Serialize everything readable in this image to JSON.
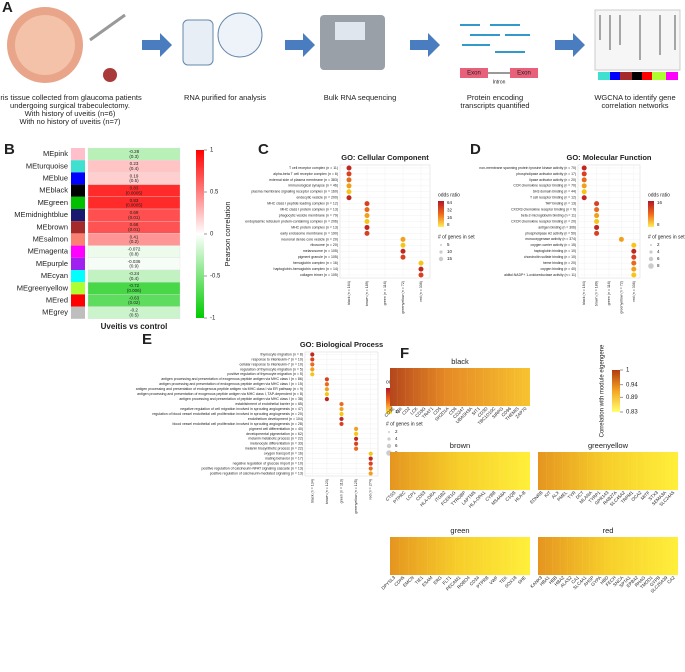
{
  "panel_a": {
    "letter": "A",
    "steps": [
      "Iris tissue collected from glaucoma patients",
      "undergoing surgical trabeculectomy.",
      "With history of uveitis (n=6)",
      "With no history of uveitis (n=7)",
      "RNA purified for analysis",
      "Bulk RNA sequencing",
      "Protein encoding",
      "transcripts quantified",
      "WGCNA to identify gene",
      "correlation networks"
    ],
    "exon": "Exon",
    "intron": "Intron"
  },
  "panel_b": {
    "letter": "B",
    "type": "heatmap",
    "rows": [
      {
        "module": "MEpink",
        "color": "#ffc0cb",
        "value": -0.28,
        "p": "(0.3)"
      },
      {
        "module": "MEturquoise",
        "color": "#40e0d0",
        "value": 0.23,
        "p": "(0.4)"
      },
      {
        "module": "MEblue",
        "color": "#0000ff",
        "value": 0.19,
        "p": "(0.5)"
      },
      {
        "module": "MEblack",
        "color": "#000000",
        "value": 0.83,
        "p": "(0.0005)"
      },
      {
        "module": "MEgreen",
        "color": "#00c000",
        "value": 0.83,
        "p": "(0.0005)"
      },
      {
        "module": "MEmidnightblue",
        "color": "#191970",
        "value": 0.69,
        "p": "(0.01)"
      },
      {
        "module": "MEbrown",
        "color": "#a52a2a",
        "value": 0.68,
        "p": "(0.01)"
      },
      {
        "module": "MEsalmon",
        "color": "#fa8072",
        "value": 0.41,
        "p": "(0.2)"
      },
      {
        "module": "MEmagenta",
        "color": "#ff00ff",
        "value": -0.072,
        "p": "(0.8)"
      },
      {
        "module": "MEpurple",
        "color": "#a020f0",
        "value": -0.036,
        "p": "(0.9)"
      },
      {
        "module": "MEcyan",
        "color": "#00ffff",
        "value": -0.24,
        "p": "(0.4)"
      },
      {
        "module": "MEgreenyellow",
        "color": "#adff2f",
        "value": -0.72,
        "p": "(0.006)"
      },
      {
        "module": "MEred",
        "color": "#ff0000",
        "value": -0.63,
        "p": "(0.02)"
      },
      {
        "module": "MEgrey",
        "color": "#bebebe",
        "value": -0.2,
        "p": "(0.5)"
      }
    ],
    "xlabel": "Uveitis vs control",
    "legend_title": "Pearson correlation",
    "clim": [
      -1,
      1
    ],
    "cticks": [
      1,
      0.5,
      0,
      -0.5,
      -1
    ]
  },
  "panel_c": {
    "letter": "C",
    "title": "GO: Cellular Component",
    "legend_color": "odds ratio",
    "legend_color_ticks": [
      64,
      32,
      16,
      8
    ],
    "legend_size": "# of genes in set",
    "legend_size_ticks": [
      5,
      10,
      15
    ],
    "groups": [
      {
        "module": "black (n = 164)",
        "terms": [
          "T cell receptor complex (n = 11)",
          "alpha-beta T cell receptor complex (n = 6)",
          "external side of plasma membrane (n = 383)",
          "immunological synapse (n = 46)",
          "plasma membrane signaling receptor complex (n = 160)",
          "endocytic vesicle (n = 200)"
        ]
      },
      {
        "module": "brown (n = 189)",
        "terms": [
          "MHC class I peptide loading complex (n = 12)",
          "MHC class I protein complex (n = 13)",
          "phagocytic vesicle membrane (n = 79)",
          "endoplasmic reticulum protein-containing complex (n = 206)",
          "MHC protein complex (n = 13)",
          "early endosome membrane (n = 190)"
        ]
      },
      {
        "module": "green (n = 116)",
        "terms": []
      },
      {
        "module": "greenyellow (n = 72)",
        "terms": [
          "neuronal dense core vesicle (n = 20)",
          "ribosome (n = 20)",
          "melanosome (n = 105)",
          "pigment granule (n = 105)"
        ]
      },
      {
        "module": "red (n = 336)",
        "terms": [
          "hemoglobin complex (n = 16)",
          "haptoglobin-hemoglobin complex (n = 14)",
          "collagen trimer (n = 105)"
        ]
      }
    ]
  },
  "panel_d": {
    "letter": "D",
    "title": "GO: Molecular Function",
    "legend_color": "odds ratio",
    "legend_color_ticks": [
      16,
      8
    ],
    "legend_size": "# of genes in set",
    "legend_size_ticks": [
      2,
      4,
      6,
      8
    ],
    "groups": [
      {
        "module": "black (n = 164)",
        "terms": [
          "non-membrane spanning protein tyrosine kinase activity (n = 70)",
          "phospholipase activator activity (n = 17)",
          "lipase activator activity (n = 20)",
          "CCR chemokine receptor binding (n = 70)",
          "SH3 domain binding (n = 44)",
          "T cell receptor binding (n = 12)"
        ]
      },
      {
        "module": "brown (n = 189)",
        "terms": [
          "TAP binding (n = 13)",
          "CXCR3 chemokine receptor binding (n = 9)",
          "beta-2-microglobulin binding (n = 11)",
          "CXCR chemokine receptor binding (n = 20)",
          "antigen binding (n = 306)",
          "phospholipase A2 activity (n = 50)"
        ]
      },
      {
        "module": "green (n = 116)",
        "terms": []
      },
      {
        "module": "greenyellow (n = 72)",
        "terms": [
          "monooxygenase activity (n = 374)"
        ]
      },
      {
        "module": "red (n = 336)",
        "terms": [
          "oxygen carrier activity (n = 15)",
          "haptoglobin binding (n = 10)",
          "chondroitin sulfate binding (n = 10)",
          "heme binding (n = 20)",
          "oxygen binding (n = 40)",
          "alditol:NADP+ 1-oxidoreductase activity (n = 11)"
        ]
      }
    ]
  },
  "panel_e": {
    "letter": "E",
    "title": "GO: Biological Process",
    "legend_color": "odds ratio",
    "legend_color_ticks": [
      32,
      16
    ],
    "legend_size": "# of genes in set",
    "legend_size_ticks": [
      2,
      4,
      6,
      8
    ],
    "groups": [
      {
        "module": "black (n = 134)",
        "terms": [
          "thymocyte migration (n = 8)",
          "response to interleukin-7 (n = 10)",
          "cellular response to interleukin-7 (n = 10)",
          "regulation of thymocyte migration (n = 5)",
          "positive regulation of thymocyte migration (n = 5)"
        ]
      },
      {
        "module": "brown (n = 123)",
        "terms": [
          "antigen processing and presentation of exogenous peptide antigen via MHC class I (n = 86)",
          "antigen processing and presentation of endogenous peptide antigen via MHC class I (n = 15)",
          "antigen processing and presentation of endogenous peptide antigen via MHC class I via ER pathway (n = 9)",
          "antigen processing and presentation of exogenous peptide antigen via MHC class I, TAP-dependent (n = 8)",
          "antigen processing and presentation of peptide antigen via MHC class I (n = 38)"
        ]
      },
      {
        "module": "green (n = 113)",
        "terms": [
          "establishment of endothelial barrier (n = 65)",
          "negative regulation of cell migration involved in sprouting angiogenesis (n = 47)",
          "regulation of blood vessel endothelial cell proliferation involved in sprouting angiogenesis (n = 20)",
          "endothelium development (n = 104)",
          "blood vessel endothelial cell proliferation involved in sprouting angiogenesis (n = 28)"
        ]
      },
      {
        "module": "greenyellow (n = 125)",
        "terms": [
          "pigment cell differentiation (n = 40)",
          "developmental pigmentation (n = 62)",
          "melanin metabolic process (n = 22)",
          "melanocyte differentiation (n = 33)",
          "melanin biosynthetic process (n = 22)"
        ]
      },
      {
        "module": "red (n = 274)",
        "terms": [
          "oxygen transport (n = 16)",
          "mating behavior (n = 17)",
          "negative regulation of glucose import (n = 10)",
          "positive regulation of calcineurin-NFAT signaling cascade (n = 13)",
          "positive regulation of calcineurin-mediated signaling (n = 13)"
        ]
      }
    ]
  },
  "panel_f": {
    "letter": "F",
    "legend_title": "Correlation with module eigengene",
    "legend_ticks": [
      1,
      0.94,
      0.89,
      0.83
    ],
    "heatmaps": [
      {
        "title": "black",
        "genes": [
          "CD3E",
          "ITK",
          "CD2",
          "LCK",
          "CD3G",
          "TRAT1",
          "CD5",
          "SH2D1A",
          "CD6",
          "CD247",
          "UBASH3A",
          "SIT1",
          "CD3D",
          "TBC1D10C",
          "SIRPG",
          "CD96",
          "THEMIS",
          "ZAP70"
        ]
      },
      {
        "title": "brown",
        "genes": [
          "CTSS",
          "PTPRC",
          "LCP1",
          "CD53",
          "HLA-DRA",
          "ITGB2",
          "FCER1G",
          "TYROBP",
          "LAPTM5",
          "HLA-DPA1",
          "CYBB",
          "MS4A6A",
          "C1QB",
          "HLA-B"
        ]
      },
      {
        "title": "greenyellow",
        "genes": [
          "EDNRB",
          "KIT",
          "ALX",
          "PMEL",
          "TYR",
          "DCT",
          "MLANA",
          "TYRP1",
          "GPR143",
          "RAB27A",
          "SLC45A2",
          "TRPM1",
          "OCA2",
          "MITF",
          "STX3",
          "SEMA3A",
          "SLC24A5"
        ]
      },
      {
        "title": "green",
        "genes": [
          "DPYSL3",
          "CDH5",
          "EMCN",
          "TIE1",
          "ESAM",
          "ERG",
          "FLT1",
          "PECAM1",
          "ROBO4",
          "CD34",
          "PTPRB",
          "VWF",
          "TEK",
          "SOX18",
          "SHE"
        ]
      },
      {
        "title": "red",
        "genes": [
          "KANK3",
          "HBA1",
          "HBB",
          "HBA2",
          "ALAS2",
          "CA1",
          "SLC4A1",
          "AHSP",
          "GYPA",
          "HBD",
          "FECH",
          "SNCA",
          "SPTA1",
          "EPB42",
          "RHAG",
          "TMOD1",
          "GYPB",
          "SLC25A39",
          "CA2"
        ]
      }
    ]
  }
}
